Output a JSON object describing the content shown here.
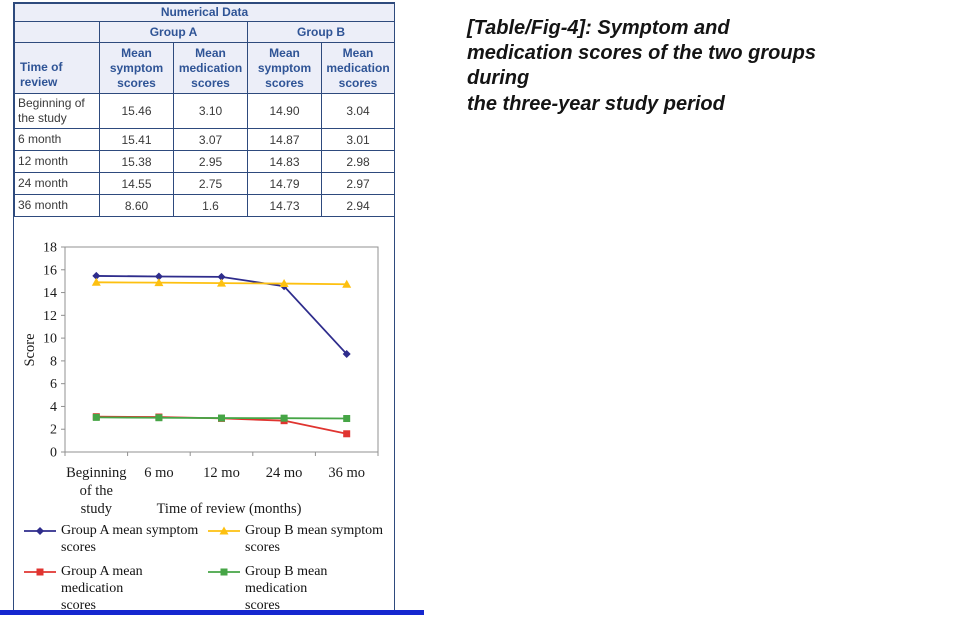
{
  "caption": "[Table/Fig-4]: Symptom and medication scores of the two groups during\nthe three-year study period",
  "table": {
    "title": "Numerical Data",
    "group_headers": [
      "Group A",
      "Group B"
    ],
    "columns": [
      "Time of review",
      "Mean symptom scores",
      "Mean medication scores",
      "Mean symptom scores",
      "Mean medication scores"
    ],
    "rows": [
      [
        "Beginning of the study",
        "15.46",
        "3.10",
        "14.90",
        "3.04"
      ],
      [
        "6 month",
        "15.41",
        "3.07",
        "14.87",
        "3.01"
      ],
      [
        "12 month",
        "15.38",
        "2.95",
        "14.83",
        "2.98"
      ],
      [
        "24 month",
        "14.55",
        "2.75",
        "14.79",
        "2.97"
      ],
      [
        "36 month",
        "8.60",
        "1.6",
        "14.73",
        "2.94"
      ]
    ]
  },
  "chart_data": {
    "type": "line",
    "title": "",
    "categories": [
      "Beginning of the study",
      "6 mo",
      "12 mo",
      "24 mo",
      "36 mo"
    ],
    "tick_label_lines": [
      [
        "Beginning",
        "of the",
        "study"
      ],
      [
        "6 mo"
      ],
      [
        "12 mo"
      ],
      [
        "24 mo"
      ],
      [
        "36 mo"
      ]
    ],
    "series": [
      {
        "name": "Group A  mean symptom\nscores",
        "values": [
          15.46,
          15.41,
          15.38,
          14.55,
          8.6
        ],
        "color": "#2e2c8c",
        "marker": "diamond"
      },
      {
        "name": "Group B mean symptom\nscores",
        "values": [
          14.9,
          14.87,
          14.83,
          14.79,
          14.73
        ],
        "color": "#fdc010",
        "marker": "triangle"
      },
      {
        "name": "Group A  mean medication\nscores",
        "values": [
          3.1,
          3.07,
          2.95,
          2.75,
          1.6
        ],
        "color": "#e03430",
        "marker": "square"
      },
      {
        "name": "Group B mean medication\nscores",
        "values": [
          3.04,
          3.01,
          2.98,
          2.97,
          2.94
        ],
        "color": "#46a546",
        "marker": "square"
      }
    ],
    "xlabel": "Time of review (months)",
    "ylabel": "Score",
    "ylim": [
      0,
      18
    ],
    "ytick_step": 2,
    "grid": false,
    "legend_position": "bottom"
  },
  "colors": {
    "table_border": "#2e4a7d",
    "header_bg": "#eceef8",
    "header_text": "#2f5496",
    "body_text": "#3a3a3a",
    "axis_gray": "#909090",
    "divider_blue": "#1527cf"
  }
}
